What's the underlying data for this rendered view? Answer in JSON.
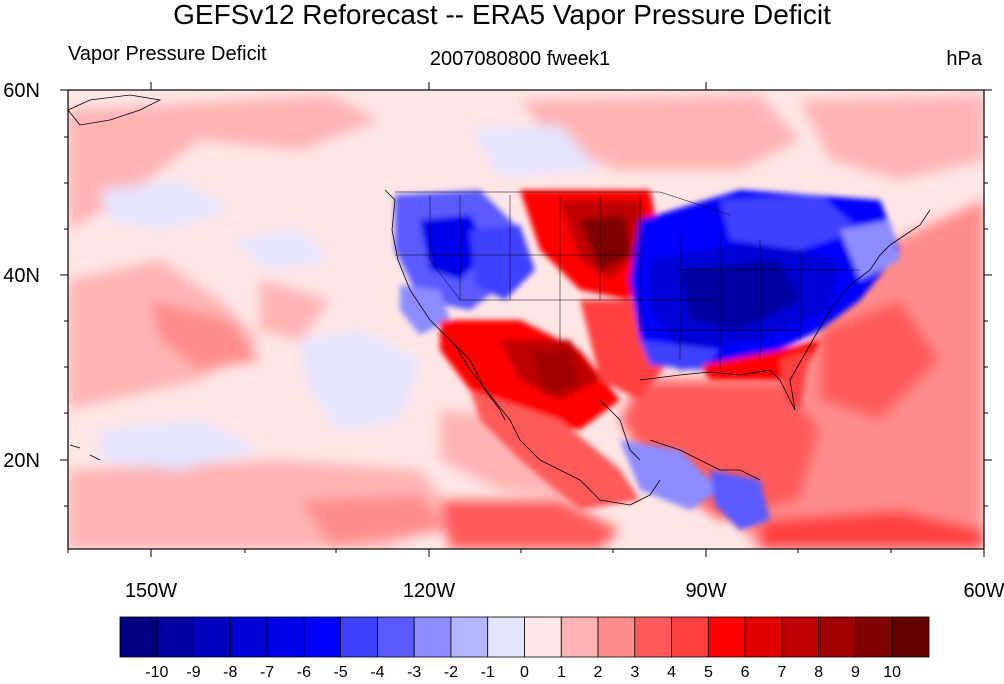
{
  "header": {
    "title": "GEFSv12 Reforecast -- ERA5 Vapor Pressure Deficit",
    "left": "Vapor Pressure Deficit",
    "center": "2007080800 fweek1",
    "right": "hPa"
  },
  "axes": {
    "lat_labels": [
      "60N",
      "40N",
      "20N"
    ],
    "lon_labels": [
      "150W",
      "120W",
      "90W",
      "60W"
    ]
  },
  "colorbar": {
    "labels": [
      "-10",
      "-9",
      "-8",
      "-7",
      "-6",
      "-5",
      "-4",
      "-3",
      "-2",
      "-1",
      "0",
      "1",
      "2",
      "3",
      "4",
      "5",
      "6",
      "7",
      "8",
      "9",
      "10"
    ],
    "colors": [
      "#000080",
      "#0000a0",
      "#0000bf",
      "#0000d6",
      "#0000eb",
      "#0000ff",
      "#4040ff",
      "#5a5aff",
      "#8c8cff",
      "#b4b4ff",
      "#e4e4ff",
      "#ffe6e6",
      "#ffb4b4",
      "#ff8c8c",
      "#ff5a5a",
      "#ff4040",
      "#ff0000",
      "#e00000",
      "#c00000",
      "#a00000",
      "#800000",
      "#640000"
    ]
  },
  "map": {
    "lat_range": [
      10,
      60
    ],
    "lon_range": [
      -160,
      -60
    ],
    "units": "hPa"
  }
}
